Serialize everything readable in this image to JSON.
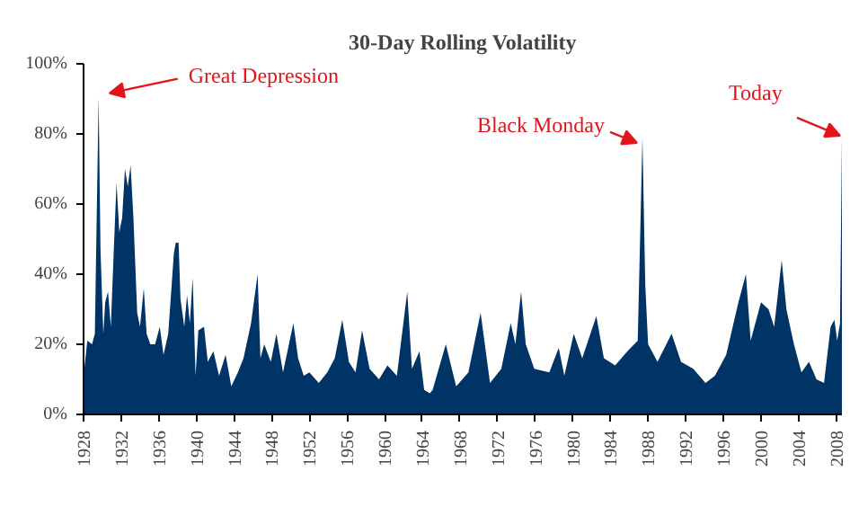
{
  "chart_data": {
    "type": "area",
    "title": "30-Day Rolling Volatility",
    "x": [
      1928.0,
      1928.4,
      1928.9,
      1929.2,
      1929.6,
      1929.8,
      1930.1,
      1930.3,
      1930.6,
      1930.9,
      1931.2,
      1931.5,
      1931.8,
      1932.1,
      1932.4,
      1932.7,
      1933.0,
      1933.3,
      1933.7,
      1934.0,
      1934.4,
      1934.7,
      1935.1,
      1935.6,
      1936.1,
      1936.5,
      1937.0,
      1937.6,
      1937.8,
      1938.1,
      1938.3,
      1938.7,
      1939.0,
      1939.3,
      1939.6,
      1939.9,
      1940.2,
      1940.8,
      1941.2,
      1941.8,
      1942.4,
      1943.1,
      1943.7,
      1944.4,
      1945.0,
      1945.8,
      1946.5,
      1946.8,
      1947.2,
      1947.9,
      1948.5,
      1949.2,
      1950.3,
      1950.8,
      1951.4,
      1952.0,
      1953.0,
      1953.9,
      1954.7,
      1955.5,
      1956.2,
      1956.9,
      1957.6,
      1958.4,
      1959.4,
      1960.3,
      1961.3,
      1962.4,
      1962.9,
      1963.7,
      1964.2,
      1964.8,
      1965.1,
      1966.5,
      1967.6,
      1968.9,
      1970.2,
      1971.2,
      1972.4,
      1973.4,
      1973.9,
      1974.5,
      1975.0,
      1975.9,
      1977.5,
      1978.5,
      1979.1,
      1980.1,
      1981.0,
      1982.5,
      1983.3,
      1984.5,
      1985.8,
      1986.9,
      1987.4,
      1987.7,
      1988.0,
      1989.0,
      1990.5,
      1991.5,
      1992.8,
      1994.1,
      1995.1,
      1996.3,
      1997.6,
      1998.4,
      1998.9,
      2000.0,
      2000.8,
      2001.4,
      2002.2,
      2002.7,
      2003.5,
      2004.3,
      2005.1,
      2005.9,
      2006.7,
      2007.4,
      2007.8,
      2008.1,
      2008.4,
      2008.6
    ],
    "series": [
      {
        "color": "#003366",
        "values": [
          11,
          21,
          20,
          23,
          90.6,
          47,
          23,
          32,
          35,
          25,
          46,
          66,
          52,
          56,
          70,
          65,
          71,
          56,
          29,
          25,
          36,
          23,
          20,
          20,
          25,
          17,
          23,
          46,
          49,
          49,
          33,
          25,
          34,
          26,
          39,
          11,
          24,
          25,
          15,
          18,
          11,
          17,
          8,
          12,
          16,
          26,
          40,
          16,
          20,
          15,
          23,
          12,
          26,
          16,
          11,
          12,
          9,
          12,
          16,
          27,
          15,
          12,
          24,
          13,
          10,
          14,
          11,
          35,
          13,
          18,
          7,
          6,
          7,
          20,
          8,
          12,
          29,
          9,
          13,
          26,
          20,
          35,
          20,
          13,
          12,
          19,
          11,
          23,
          16,
          28,
          16,
          14,
          18,
          21,
          79,
          37,
          20,
          15,
          23,
          15,
          13,
          9,
          11,
          17,
          32,
          40,
          21,
          32,
          30,
          25,
          44,
          30,
          20,
          12,
          15,
          10,
          9,
          25,
          27,
          21,
          26,
          79
        ]
      }
    ],
    "xlim": [
      1928,
      2008.6
    ],
    "xticks": [
      1928,
      1932,
      1936,
      1940,
      1944,
      1948,
      1952,
      1956,
      1960,
      1964,
      1968,
      1972,
      1976,
      1980,
      1984,
      1988,
      1992,
      1996,
      2000,
      2004,
      2008
    ],
    "ylim": [
      0,
      100
    ],
    "yticks": [
      {
        "value": 0,
        "label": "0%"
      },
      {
        "value": 20,
        "label": "20%"
      },
      {
        "value": 40,
        "label": "40%"
      },
      {
        "value": 60,
        "label": "60%"
      },
      {
        "value": 80,
        "label": "80%"
      },
      {
        "value": 100,
        "label": "100%"
      }
    ],
    "annotations": [
      {
        "text": "Great Depression",
        "x": 1929.6,
        "y": 90.6
      },
      {
        "text": "Black Monday",
        "x": 1987.4,
        "y": 79
      },
      {
        "text": "Today",
        "x": 2008.6,
        "y": 79
      }
    ],
    "grid": false
  }
}
